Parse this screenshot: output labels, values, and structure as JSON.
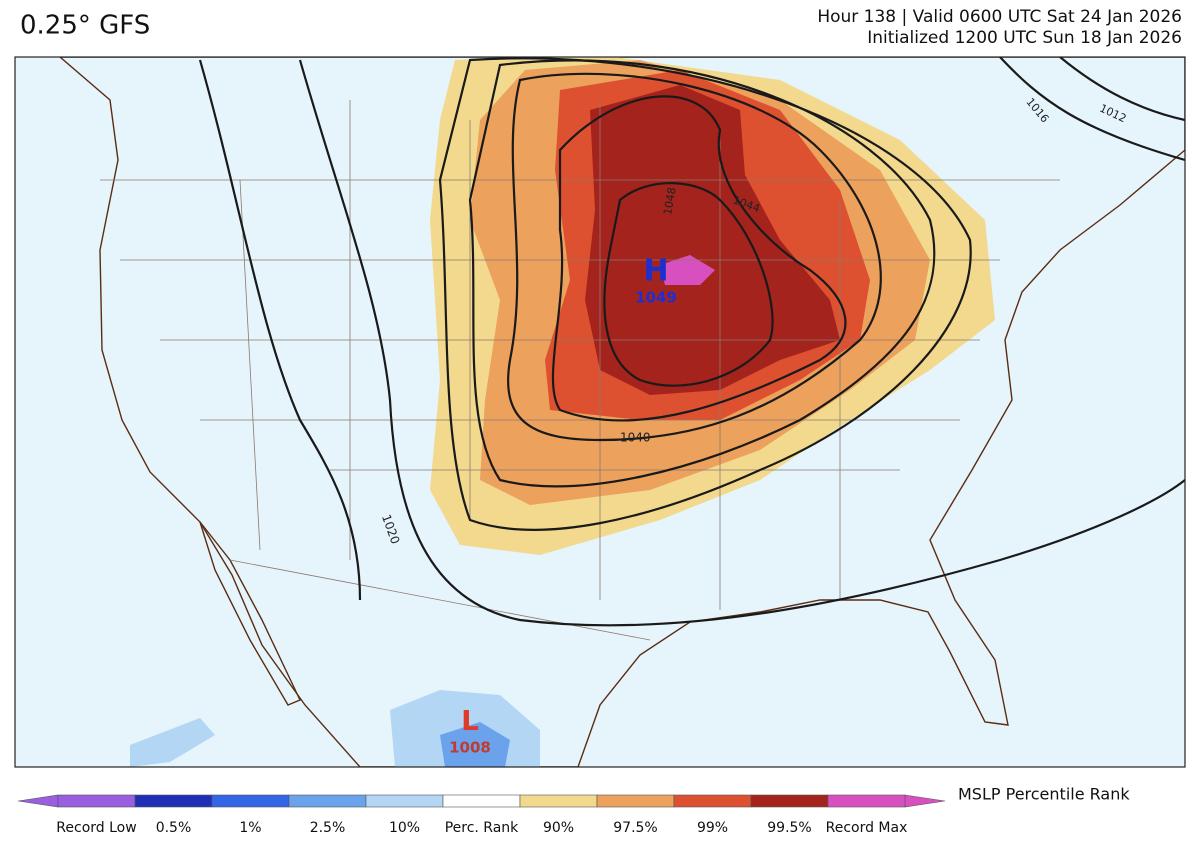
{
  "header": {
    "title": "0.25° GFS",
    "valid": "Hour 138 | Valid 0600 UTC Sat 24 Jan 2026",
    "initialized": "Initialized 1200 UTC Sun 18 Jan 2026"
  },
  "map": {
    "high": {
      "symbol": "H",
      "pressure": "1049"
    },
    "low": {
      "symbol": "L",
      "pressure": "1008"
    },
    "contour_labels": [
      "1048",
      "1044",
      "1040",
      "1020",
      "1016",
      "1012"
    ]
  },
  "legend": {
    "title": "MSLP Percentile Rank",
    "items": [
      {
        "label": "Record Low",
        "color": "#9a5ee0"
      },
      {
        "label": "0.5%",
        "color": "#1f2fb8"
      },
      {
        "label": "1%",
        "color": "#3366e6"
      },
      {
        "label": "2.5%",
        "color": "#6aa2ec"
      },
      {
        "label": "10%",
        "color": "#b3d6f5"
      },
      {
        "label": "Perc. Rank",
        "color": "#ffffff"
      },
      {
        "label": "90%",
        "color": "#f2d98e"
      },
      {
        "label": "97.5%",
        "color": "#eca15c"
      },
      {
        "label": "99%",
        "color": "#dd5130"
      },
      {
        "label": "99.5%",
        "color": "#a4231d"
      },
      {
        "label": "Record Max",
        "color": "#d850bf"
      }
    ]
  }
}
